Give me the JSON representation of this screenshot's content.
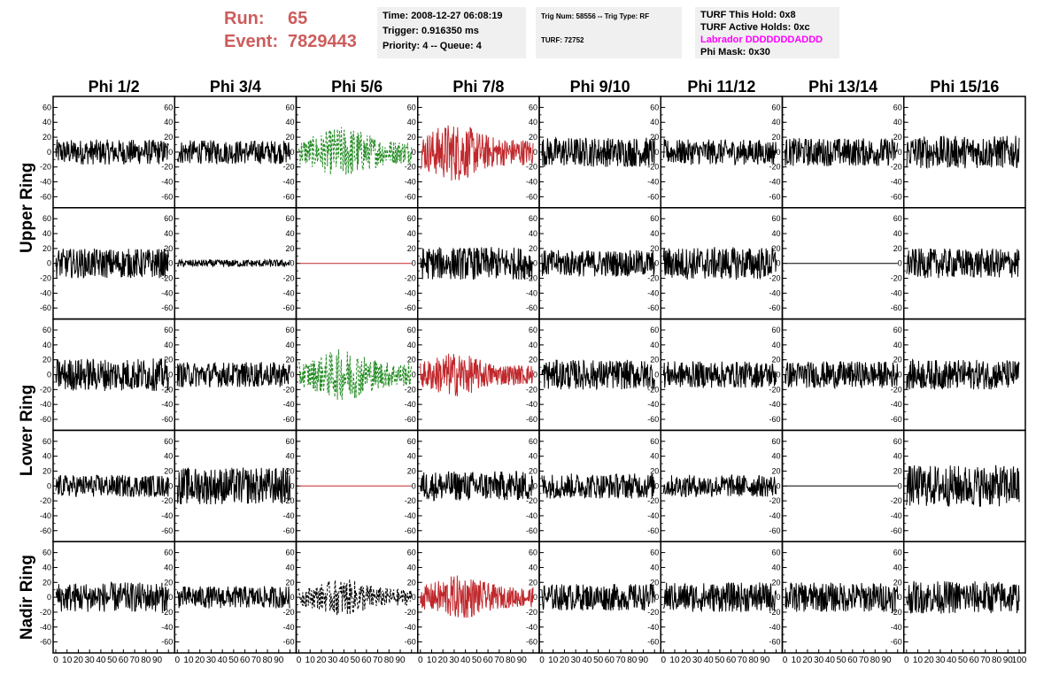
{
  "header": {
    "run_label": "Run:",
    "run_value": "65",
    "event_label": "Event:",
    "event_value": "7829443"
  },
  "info_time": {
    "time": "Time: 2008-12-27 06:08:19",
    "trigger": "Trigger: 0.916350 ms",
    "priority": "Priority: 4 -- Queue: 4"
  },
  "info_trig": {
    "trig_line": "Trig Num: 58556 -- Trig Type: RF",
    "turf_line": "TURF: 72752"
  },
  "info_turf": {
    "hold": "TURF This Hold: 0x8",
    "active": "TURF Active Holds: 0xc",
    "labrador": "Labrador DDDDDDDADDD",
    "phi_mask": "Phi Mask: 0x30"
  },
  "colors": {
    "run": "#cd5c5c",
    "green": "#228b22",
    "red": "#c0282c",
    "black": "#000000",
    "magenta": "#ff00ff"
  },
  "chart_data": {
    "type": "line",
    "columns": [
      "Phi 1/2",
      "Phi 3/4",
      "Phi 5/6",
      "Phi 7/8",
      "Phi 9/10",
      "Phi 11/12",
      "Phi 13/14",
      "Phi 15/16"
    ],
    "ring_labels": [
      "Upper Ring",
      "Lower Ring",
      "Nadir Ring"
    ],
    "rows": 5,
    "ylim": [
      -70,
      70
    ],
    "yticks": [
      -60,
      -40,
      -20,
      0,
      20,
      40,
      60
    ],
    "ytick_labels": [
      "-60",
      "-40",
      "-20",
      "0",
      "20",
      "40",
      "60"
    ],
    "xlim": [
      0,
      100
    ],
    "xticks": [
      0,
      10,
      20,
      30,
      40,
      50,
      60,
      70,
      80,
      90,
      100
    ],
    "xtick_labels": [
      "0",
      "10",
      "20",
      "30",
      "40",
      "50",
      "60",
      "70",
      "80",
      "90",
      "100"
    ],
    "panels": [
      [
        {
          "color": "black",
          "style": "solid",
          "amp": 17
        },
        {
          "color": "black",
          "style": "solid",
          "amp": 16
        },
        {
          "color": "green",
          "style": "dashed",
          "amp": 35,
          "burst": 40
        },
        {
          "color": "red",
          "style": "solid",
          "amp": 40,
          "burst": 30
        },
        {
          "color": "black",
          "style": "solid",
          "amp": 20
        },
        {
          "color": "black",
          "style": "solid",
          "amp": 17
        },
        {
          "color": "black",
          "style": "solid",
          "amp": 19
        },
        {
          "color": "black",
          "style": "solid",
          "amp": 22
        }
      ],
      [
        {
          "color": "black",
          "style": "solid",
          "amp": 20
        },
        {
          "color": "black",
          "style": "solid",
          "amp": 5
        },
        {
          "color": "red",
          "style": "flat",
          "amp": 0
        },
        {
          "color": "black",
          "style": "solid",
          "amp": 22
        },
        {
          "color": "black",
          "style": "solid",
          "amp": 18
        },
        {
          "color": "black",
          "style": "solid",
          "amp": 22
        },
        {
          "color": "black",
          "style": "flat",
          "amp": 0
        },
        {
          "color": "black",
          "style": "solid",
          "amp": 20
        }
      ],
      [
        {
          "color": "black",
          "style": "solid",
          "amp": 22
        },
        {
          "color": "black",
          "style": "solid",
          "amp": 17
        },
        {
          "color": "green",
          "style": "dashed",
          "amp": 35,
          "burst": 40
        },
        {
          "color": "red",
          "style": "solid",
          "amp": 30,
          "burst": 30
        },
        {
          "color": "black",
          "style": "solid",
          "amp": 20
        },
        {
          "color": "black",
          "style": "solid",
          "amp": 18
        },
        {
          "color": "black",
          "style": "solid",
          "amp": 18
        },
        {
          "color": "black",
          "style": "solid",
          "amp": 20
        }
      ],
      [
        {
          "color": "black",
          "style": "solid",
          "amp": 15
        },
        {
          "color": "black",
          "style": "solid",
          "amp": 25
        },
        {
          "color": "red",
          "style": "flat",
          "amp": 0
        },
        {
          "color": "black",
          "style": "solid",
          "amp": 20
        },
        {
          "color": "black",
          "style": "solid",
          "amp": 17
        },
        {
          "color": "black",
          "style": "solid",
          "amp": 15
        },
        {
          "color": "black",
          "style": "flat",
          "amp": 0
        },
        {
          "color": "black",
          "style": "solid",
          "amp": 28
        }
      ],
      [
        {
          "color": "black",
          "style": "solid",
          "amp": 20
        },
        {
          "color": "black",
          "style": "solid",
          "amp": 15
        },
        {
          "color": "black",
          "style": "dashed",
          "amp": 25,
          "burst": 40
        },
        {
          "color": "red",
          "style": "solid",
          "amp": 30,
          "burst": 35
        },
        {
          "color": "black",
          "style": "solid",
          "amp": 18
        },
        {
          "color": "black",
          "style": "solid",
          "amp": 20
        },
        {
          "color": "black",
          "style": "solid",
          "amp": 20
        },
        {
          "color": "black",
          "style": "solid",
          "amp": 22
        }
      ]
    ]
  }
}
